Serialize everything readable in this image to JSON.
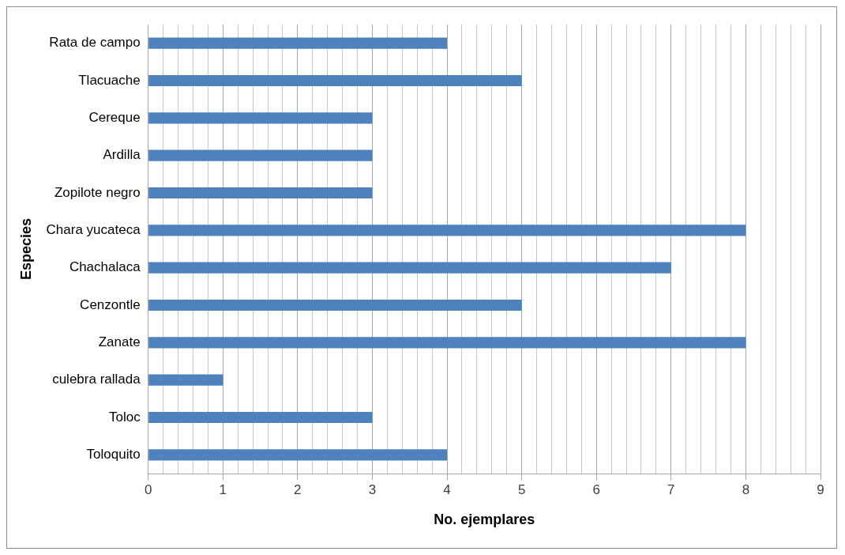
{
  "chart_data": {
    "type": "bar",
    "orientation": "horizontal",
    "xlabel": "No. ejemplares",
    "ylabel": "Especies",
    "categories": [
      "Rata de campo",
      "Tlacuache",
      "Cereque",
      "Ardilla",
      "Zopilote negro",
      "Chara yucateca",
      "Chachalaca",
      "Cenzontle",
      "Zanate",
      "culebra rallada",
      "Toloc",
      "Toloquito"
    ],
    "values": [
      4,
      5,
      3,
      3,
      3,
      8,
      7,
      5,
      8,
      1,
      3,
      4
    ],
    "color": "#4f81bd",
    "xlim": [
      0,
      9
    ],
    "xticks": [
      0,
      {
        "value": 0.2,
        "label": null
      },
      {
        "value": 0.4,
        "label": null
      },
      {
        "value": 0.6,
        "label": null
      },
      {
        "value": 0.8,
        "label": null
      },
      1,
      {
        "value": 1.2,
        "label": null
      },
      {
        "value": 1.4,
        "label": null
      },
      {
        "value": 1.6,
        "label": null
      },
      {
        "value": 1.8,
        "label": null
      },
      2,
      {
        "value": 2.2,
        "label": null
      },
      {
        "value": 2.4,
        "label": null
      },
      {
        "value": 2.6,
        "label": null
      },
      {
        "value": 2.8,
        "label": null
      },
      3,
      {
        "value": 3.2,
        "label": null
      },
      {
        "value": 3.4,
        "label": null
      },
      {
        "value": 3.6,
        "label": null
      },
      {
        "value": 3.8,
        "label": null
      },
      4,
      {
        "value": 4.2,
        "label": null
      },
      {
        "value": 4.4,
        "label": null
      },
      {
        "value": 4.6,
        "label": null
      },
      {
        "value": 4.8,
        "label": null
      },
      5,
      {
        "value": 5.2,
        "label": null
      },
      {
        "value": 5.4,
        "label": null
      },
      {
        "value": 5.6,
        "label": null
      },
      {
        "value": 5.8,
        "label": null
      },
      6,
      {
        "value": 6.2,
        "label": null
      },
      {
        "value": 6.4,
        "label": null
      },
      {
        "value": 6.6,
        "label": null
      },
      {
        "value": 6.8,
        "label": null
      },
      7,
      {
        "value": 7.2,
        "label": null
      },
      {
        "value": 7.4,
        "label": null
      },
      {
        "value": 7.6,
        "label": null
      },
      {
        "value": 7.8,
        "label": null
      },
      8,
      {
        "value": 8.2,
        "label": null
      },
      {
        "value": 8.4,
        "label": null
      },
      {
        "value": 8.6,
        "label": null
      },
      {
        "value": 8.8,
        "label": null
      },
      9
    ],
    "grid": "x",
    "legend": false
  }
}
